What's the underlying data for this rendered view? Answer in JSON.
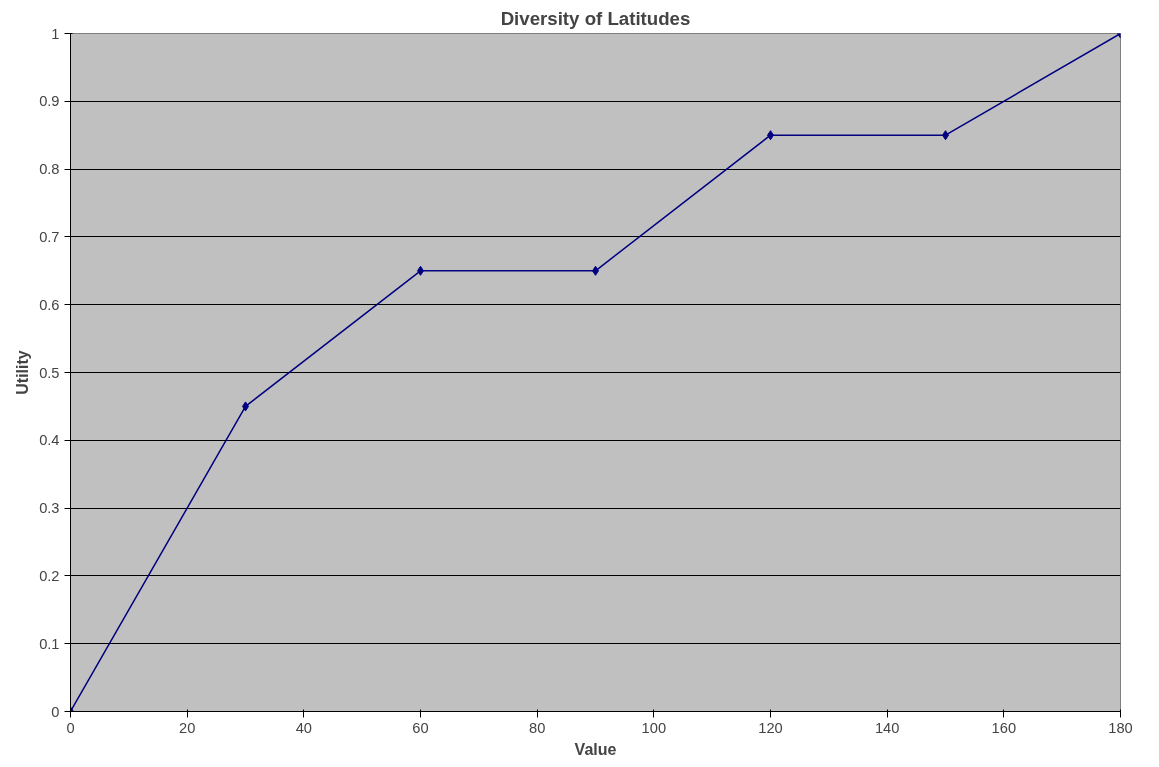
{
  "chart_data": {
    "type": "line",
    "title": "Diversity of Latitudes",
    "xlabel": "Value",
    "ylabel": "Utility",
    "x": [
      0,
      30,
      60,
      90,
      120,
      150,
      180
    ],
    "series": [
      {
        "color": "#000080",
        "values": [
          0,
          0.45,
          0.65,
          0.65,
          0.85,
          0.85,
          1
        ]
      }
    ],
    "xlim": [
      0,
      180
    ],
    "xticks": [
      0,
      20,
      40,
      60,
      80,
      100,
      120,
      140,
      160,
      180
    ],
    "ylim": [
      0,
      1
    ],
    "yticks": [
      0,
      0.1,
      0.2,
      0.3,
      0.4,
      0.5,
      0.6,
      0.7,
      0.8,
      0.9,
      1
    ],
    "grid": "y",
    "marker": "diamond",
    "line_style": "solid"
  }
}
